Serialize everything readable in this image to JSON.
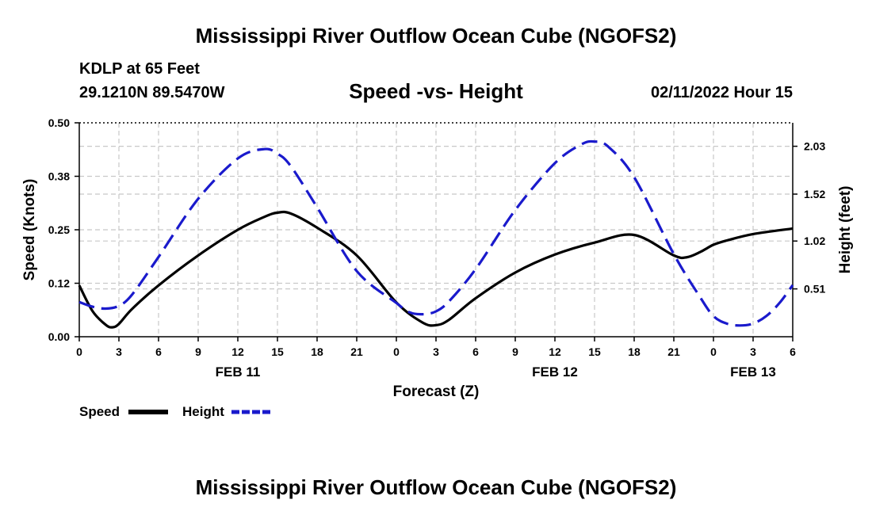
{
  "header": {
    "title": "Mississippi River Outflow Ocean Cube (NGOFS2)",
    "station": "KDLP at 65 Feet",
    "coords": "29.1210N  89.5470W",
    "subtitle": "Speed -vs- Height",
    "datetime": "02/11/2022 Hour 15"
  },
  "footer": {
    "title": "Mississippi River Outflow Ocean Cube (NGOFS2)"
  },
  "chart_data": {
    "type": "line",
    "title": "Speed -vs- Height",
    "xlabel": "Forecast (Z)",
    "ylabel": "Speed (Knots)",
    "y2label": "Height (feet)",
    "xlim": [
      0,
      54
    ],
    "ylim": [
      0,
      0.5
    ],
    "y2lim": [
      0,
      2.28
    ],
    "grid": true,
    "x_ticks": [
      0,
      3,
      6,
      9,
      12,
      15,
      18,
      21,
      24,
      27,
      30,
      33,
      36,
      39,
      42,
      45,
      48,
      51,
      54
    ],
    "x_tick_labels": [
      "0",
      "3",
      "6",
      "9",
      "12",
      "15",
      "18",
      "21",
      "0",
      "3",
      "6",
      "9",
      "12",
      "15",
      "18",
      "21",
      "0",
      "3",
      "6"
    ],
    "date_labels": [
      {
        "hour": 12,
        "label": "FEB 11"
      },
      {
        "hour": 36,
        "label": "FEB 12"
      },
      {
        "hour": 51,
        "label": "FEB 13"
      }
    ],
    "y_ticks": [
      0.0,
      0.125,
      0.25,
      0.375,
      0.5
    ],
    "y_tick_labels": [
      "0.00",
      "0.12",
      "0.25",
      "0.38",
      "0.50"
    ],
    "y2_ticks": [
      0.51,
      1.02,
      1.52,
      2.03
    ],
    "y2_tick_labels": [
      "0.51",
      "1.02",
      "1.52",
      "2.03"
    ],
    "series": [
      {
        "name": "Speed",
        "axis": "left",
        "color": "#000000",
        "style": "solid",
        "x": [
          0,
          1,
          2,
          2.5,
          3,
          4,
          6,
          9,
          12,
          14,
          15,
          16,
          18,
          21,
          24,
          26,
          27,
          28,
          30,
          33,
          36,
          39,
          42,
          45,
          46,
          47,
          48,
          49,
          51,
          54
        ],
        "y": [
          0.12,
          0.06,
          0.028,
          0.022,
          0.03,
          0.065,
          0.12,
          0.19,
          0.25,
          0.28,
          0.29,
          0.288,
          0.255,
          0.19,
          0.08,
          0.033,
          0.027,
          0.04,
          0.09,
          0.15,
          0.192,
          0.22,
          0.238,
          0.19,
          0.186,
          0.198,
          0.215,
          0.225,
          0.24,
          0.253
        ]
      },
      {
        "name": "Height",
        "axis": "right",
        "color": "#1a1acc",
        "style": "dashed",
        "x": [
          0,
          1,
          2,
          3,
          4,
          6,
          9,
          12,
          14,
          15,
          16,
          18,
          21,
          24,
          25,
          26,
          27,
          28,
          30,
          33,
          36,
          38,
          39,
          40,
          42,
          45,
          47,
          48,
          49,
          50,
          51,
          52,
          53,
          54
        ],
        "y": [
          0.37,
          0.32,
          0.3,
          0.33,
          0.45,
          0.85,
          1.47,
          1.9,
          2.0,
          1.95,
          1.82,
          1.38,
          0.7,
          0.36,
          0.26,
          0.24,
          0.27,
          0.38,
          0.72,
          1.35,
          1.85,
          2.05,
          2.08,
          2.03,
          1.7,
          0.88,
          0.42,
          0.22,
          0.14,
          0.12,
          0.14,
          0.22,
          0.36,
          0.55
        ]
      }
    ]
  },
  "legend": {
    "speed_label": "Speed",
    "height_label": "Height"
  }
}
